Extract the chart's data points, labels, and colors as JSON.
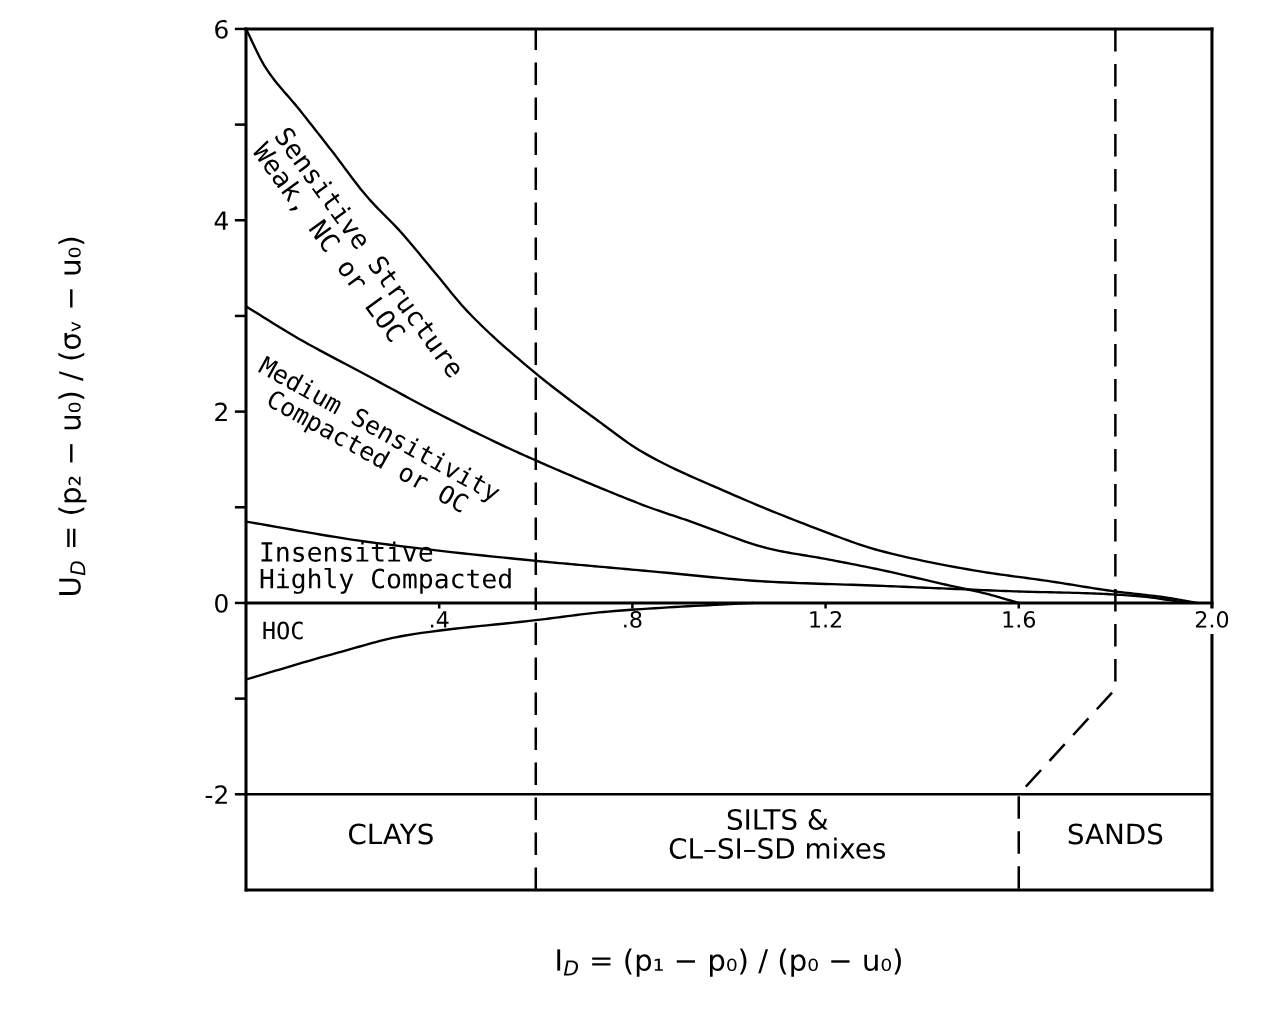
{
  "chart_data": {
    "type": "line",
    "xlabel": "I$_{D}$ = (p₁ − p₀) / (p₀ − u₀)",
    "ylabel": "U$_{D}$ = (p₂ − u₀) / (σᵥ − u₀)",
    "xlim": [
      0,
      2
    ],
    "ylim": [
      -3,
      6
    ],
    "xticks": [
      {
        "value": 0.4,
        "label": ".4"
      },
      {
        "value": 0.8,
        "label": ".8"
      },
      1.2,
      1.6,
      {
        "value": 2,
        "label": "2.0"
      }
    ],
    "yticks": [
      -2,
      {
        "value": -1,
        "label": null
      },
      0,
      {
        "value": 1,
        "label": null
      },
      2,
      {
        "value": 3,
        "label": null
      },
      4,
      {
        "value": 5,
        "label": null
      },
      6
    ],
    "line_style": "solid",
    "series": [
      {
        "name": "Sensitive Structure\nWeak, NC or LOC",
        "color": "#000000",
        "x": [
          0,
          0.04,
          0.11,
          0.18,
          0.25,
          0.32,
          0.39,
          0.46,
          0.6,
          0.73,
          0.82,
          1.0,
          1.18,
          1.31,
          1.52,
          1.66,
          1.8,
          1.9,
          1.97
        ],
        "values": [
          6,
          5.6,
          5.16,
          4.71,
          4.25,
          3.88,
          3.46,
          3.04,
          2.4,
          1.9,
          1.58,
          1.15,
          0.78,
          0.55,
          0.33,
          0.23,
          0.12,
          0.06,
          0
        ]
      },
      {
        "name": "Medium Sensitivity\nCompacted or OC",
        "color": "#000000",
        "x": [
          0,
          0.11,
          0.25,
          0.39,
          0.53,
          0.6,
          0.73,
          0.84,
          0.91,
          1.09,
          1.2,
          1.31,
          1.45,
          1.53,
          1.6
        ],
        "values": [
          3.1,
          2.76,
          2.38,
          2.0,
          1.65,
          1.49,
          1.21,
          0.99,
          0.87,
          0.56,
          0.46,
          0.35,
          0.19,
          0.1,
          0
        ]
      },
      {
        "name": "Insensitive\nHighly Compacted",
        "color": "#000000",
        "x": [
          0,
          0.25,
          0.6,
          0.73,
          0.84,
          1.09,
          1.31,
          1.45,
          1.6,
          1.75,
          1.85,
          1.95
        ],
        "values": [
          0.85,
          0.64,
          0.44,
          0.38,
          0.33,
          0.22,
          0.18,
          0.15,
          0.12,
          0.1,
          0.07,
          0
        ]
      },
      {
        "name": "HOC",
        "color": "#000000",
        "x": [
          0,
          0.19,
          0.33,
          0.6,
          0.75,
          0.97,
          1.05
        ],
        "values": [
          -0.8,
          -0.52,
          -0.34,
          -0.18,
          -0.09,
          -0.02,
          0
        ]
      },
      {
        "color": "#000000",
        "line_style": "dashed",
        "x": [
          1.8,
          1.8,
          1.6,
          1.6
        ],
        "values": [
          6,
          -0.9,
          -2,
          -3
        ]
      }
    ],
    "ref_lines": [
      {
        "axis": "y",
        "value": -2,
        "color": "#000000"
      },
      {
        "axis": "x",
        "value": 0.6,
        "color": "#000000",
        "line_style": "dashed"
      }
    ],
    "annotations": [
      "CLAYS",
      "SILTS &\nCL–SI–SD mixes",
      "SANDS"
    ]
  }
}
